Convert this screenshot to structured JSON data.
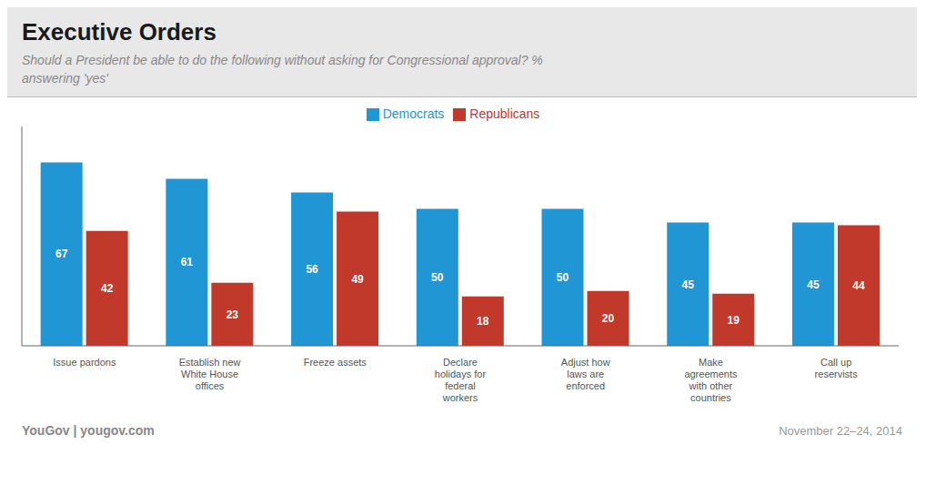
{
  "chart_data": {
    "type": "bar",
    "title": "Executive Orders",
    "subtitle": "Should a President be able to do the following without asking for Congressional approval? %\nanswering 'yes'",
    "categories": [
      "Issue pardons",
      "Establish new\nWhite House\noffices",
      "Freeze assets",
      "Declare\nholidays for\nfederal\nworkers",
      "Adjust how\nlaws are\nenforced",
      "Make\nagreements\nwith other\ncountries",
      "Call up\nreservists"
    ],
    "series": [
      {
        "name": "Democrats",
        "color": "#2196d4",
        "values": [
          67,
          61,
          56,
          50,
          50,
          45,
          45
        ]
      },
      {
        "name": "Republicans",
        "color": "#c0392b",
        "values": [
          42,
          23,
          49,
          18,
          20,
          19,
          44
        ]
      }
    ],
    "ylim": [
      0,
      80
    ],
    "grid": false,
    "legend": "top",
    "data_labels": true,
    "tick_labels": "x",
    "annotations": [
      "YouGov | yougov.com",
      "November 22–24, 2014"
    ]
  }
}
